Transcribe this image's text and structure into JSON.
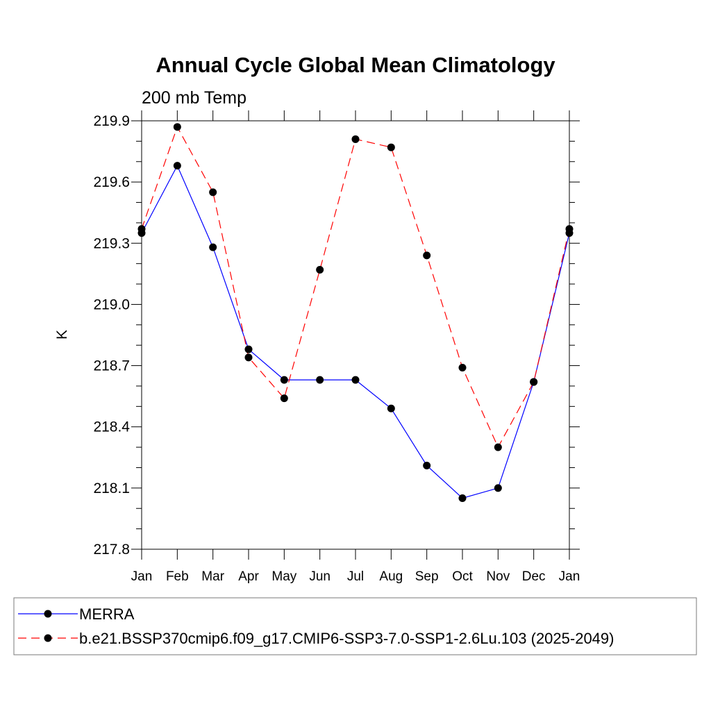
{
  "chart_data": {
    "type": "line",
    "title": "Annual Cycle Global Mean Climatology",
    "subtitle": "200 mb Temp",
    "xlabel": "",
    "ylabel": "K",
    "categories": [
      "Jan",
      "Feb",
      "Mar",
      "Apr",
      "May",
      "Jun",
      "Jul",
      "Aug",
      "Sep",
      "Oct",
      "Nov",
      "Dec",
      "Jan"
    ],
    "ylim": [
      217.8,
      219.9
    ],
    "yticks": [
      "219.9",
      "219.6",
      "219.3",
      "219.0",
      "218.7",
      "218.4",
      "218.1",
      "217.8"
    ],
    "series": [
      {
        "name": "MERRA",
        "color": "#0000ff",
        "dash": "solid",
        "values": [
          219.35,
          219.68,
          219.28,
          218.78,
          218.63,
          218.63,
          218.63,
          218.49,
          218.21,
          218.05,
          218.1,
          218.62,
          219.35
        ]
      },
      {
        "name": "b.e21.BSSP370cmip6.f09_g17.CMIP6-SSP3-7.0-SSP1-2.6Lu.103 (2025-2049)",
        "color": "#ff0000",
        "dash": "dashed",
        "values": [
          219.37,
          219.87,
          219.55,
          218.74,
          218.54,
          219.17,
          219.81,
          219.77,
          219.24,
          218.69,
          218.3,
          218.62,
          219.37
        ]
      }
    ],
    "legend_position": "bottom",
    "grid": false
  }
}
